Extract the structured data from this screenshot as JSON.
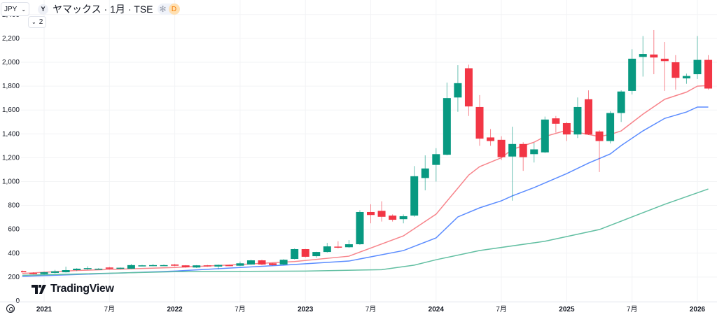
{
  "header": {
    "currency": "JPY",
    "logo_letter": "Y",
    "title": "ヤマックス · 1月 · TSE",
    "asterisk": "✻",
    "status_badge": "D",
    "collapse_count": "2"
  },
  "branding": {
    "name": "TradingView"
  },
  "colors": {
    "up": "#089981",
    "down": "#F23645",
    "ma_fast": "#F7858C",
    "ma_mid": "#5B8CFF",
    "ma_slow": "#62BFA2",
    "grid": "#F2F3F5"
  },
  "chart_data": {
    "type": "candlestick",
    "title": "ヤマックス · 1月 · TSE",
    "interval": "1M",
    "ylabel": "JPY",
    "ylim": [
      0,
      2450
    ],
    "yticks": [
      0,
      200,
      400,
      600,
      800,
      1000,
      1200,
      1400,
      1600,
      1800,
      2000,
      2200,
      2400
    ],
    "ytick_labels": [
      "0",
      "200",
      "400",
      "600",
      "800",
      "1,000",
      "1,200",
      "1,400",
      "1,600",
      "1,800",
      "2,000",
      "2,200",
      "2,400"
    ],
    "xticks": [
      {
        "index": 2,
        "label": "2021",
        "year": true
      },
      {
        "index": 8,
        "label": "7月",
        "year": false
      },
      {
        "index": 14,
        "label": "2022",
        "year": true
      },
      {
        "index": 20,
        "label": "7月",
        "year": false
      },
      {
        "index": 26,
        "label": "2023",
        "year": true
      },
      {
        "index": 32,
        "label": "7月",
        "year": false
      },
      {
        "index": 38,
        "label": "2024",
        "year": true
      },
      {
        "index": 44,
        "label": "7月",
        "year": false
      },
      {
        "index": 50,
        "label": "2025",
        "year": true
      },
      {
        "index": 56,
        "label": "7月",
        "year": false
      },
      {
        "index": 62,
        "label": "2026",
        "year": true
      }
    ],
    "start_month": "2020-11",
    "ohlc": [
      [
        250,
        255,
        238,
        240
      ],
      [
        235,
        240,
        222,
        225
      ],
      [
        225,
        245,
        220,
        240
      ],
      [
        235,
        260,
        230,
        248
      ],
      [
        240,
        287,
        238,
        258
      ],
      [
        258,
        275,
        250,
        270
      ],
      [
        275,
        290,
        260,
        275
      ],
      [
        270,
        275,
        265,
        270
      ],
      [
        280,
        285,
        265,
        270
      ],
      [
        270,
        280,
        265,
        278
      ],
      [
        270,
        310,
        268,
        300
      ],
      [
        298,
        302,
        294,
        298
      ],
      [
        300,
        310,
        290,
        300
      ],
      [
        300,
        305,
        295,
        300
      ],
      [
        305,
        310,
        290,
        295
      ],
      [
        298,
        300,
        278,
        282
      ],
      [
        280,
        300,
        276,
        298
      ],
      [
        298,
        302,
        286,
        290
      ],
      [
        288,
        305,
        265,
        302
      ],
      [
        300,
        302,
        292,
        296
      ],
      [
        295,
        330,
        292,
        315
      ],
      [
        305,
        345,
        302,
        340
      ],
      [
        340,
        345,
        300,
        305
      ],
      [
        315,
        318,
        296,
        300
      ],
      [
        305,
        350,
        300,
        345
      ],
      [
        352,
        440,
        348,
        434
      ],
      [
        434,
        436,
        365,
        370
      ],
      [
        375,
        412,
        362,
        410
      ],
      [
        410,
        486,
        405,
        457
      ],
      [
        455,
        500,
        440,
        450
      ],
      [
        450,
        510,
        445,
        475
      ],
      [
        475,
        760,
        470,
        745
      ],
      [
        745,
        810,
        650,
        720
      ],
      [
        755,
        835,
        665,
        705
      ],
      [
        715,
        725,
        665,
        680
      ],
      [
        685,
        725,
        650,
        710
      ],
      [
        715,
        1130,
        705,
        1045
      ],
      [
        1030,
        1220,
        927,
        1110
      ],
      [
        1140,
        1280,
        1000,
        1230
      ],
      [
        1225,
        1830,
        1220,
        1700
      ],
      [
        1705,
        1976,
        1585,
        1825
      ],
      [
        1950,
        1980,
        1550,
        1630
      ],
      [
        1625,
        1725,
        1300,
        1360
      ],
      [
        1370,
        1440,
        1300,
        1340
      ],
      [
        1350,
        1380,
        1180,
        1205
      ],
      [
        1210,
        1460,
        840,
        1315
      ],
      [
        1315,
        1330,
        1090,
        1205
      ],
      [
        1230,
        1325,
        1160,
        1270
      ],
      [
        1245,
        1545,
        1240,
        1520
      ],
      [
        1530,
        1550,
        1410,
        1485
      ],
      [
        1490,
        1500,
        1340,
        1395
      ],
      [
        1395,
        1705,
        1365,
        1625
      ],
      [
        1690,
        1765,
        1390,
        1395
      ],
      [
        1420,
        1430,
        1080,
        1340
      ],
      [
        1340,
        1590,
        1320,
        1575
      ],
      [
        1575,
        1765,
        1500,
        1755
      ],
      [
        1760,
        2110,
        1730,
        2030
      ],
      [
        2045,
        2220,
        1880,
        2070
      ],
      [
        2065,
        2270,
        1900,
        2040
      ],
      [
        2030,
        2170,
        1760,
        2010
      ],
      [
        2000,
        2060,
        1770,
        1870
      ],
      [
        1865,
        1905,
        1820,
        1885
      ],
      [
        1900,
        2220,
        1860,
        2020
      ],
      [
        2020,
        2060,
        1770,
        1780
      ]
    ],
    "moving_averages": [
      {
        "name": "MA fast",
        "points": [
          [
            0,
            230
          ],
          [
            5,
            255
          ],
          [
            14,
            280
          ],
          [
            20,
            305
          ],
          [
            25,
            330
          ],
          [
            30,
            375
          ],
          [
            35,
            545
          ],
          [
            38,
            727
          ],
          [
            40,
            945
          ],
          [
            41,
            1055
          ],
          [
            42,
            1125
          ],
          [
            44,
            1200
          ],
          [
            45,
            1270
          ],
          [
            47,
            1330
          ],
          [
            48,
            1378
          ],
          [
            50,
            1430
          ],
          [
            52,
            1395
          ],
          [
            53,
            1378
          ],
          [
            54,
            1395
          ],
          [
            55,
            1425
          ],
          [
            57,
            1565
          ],
          [
            59,
            1690
          ],
          [
            61,
            1750
          ],
          [
            62,
            1800
          ],
          [
            63,
            1805
          ]
        ]
      },
      {
        "name": "MA mid",
        "points": [
          [
            0,
            205
          ],
          [
            14,
            250
          ],
          [
            24,
            300
          ],
          [
            30,
            334
          ],
          [
            35,
            422
          ],
          [
            38,
            528
          ],
          [
            40,
            704
          ],
          [
            42,
            780
          ],
          [
            44,
            839
          ],
          [
            45,
            880
          ],
          [
            47,
            950
          ],
          [
            50,
            1067
          ],
          [
            52,
            1155
          ],
          [
            54,
            1232
          ],
          [
            55,
            1302
          ],
          [
            57,
            1425
          ],
          [
            59,
            1530
          ],
          [
            61,
            1583
          ],
          [
            62,
            1625
          ],
          [
            63,
            1625
          ]
        ]
      },
      {
        "name": "MA slow",
        "points": [
          [
            0,
            215
          ],
          [
            14,
            245
          ],
          [
            26,
            250
          ],
          [
            33,
            262
          ],
          [
            36,
            300
          ],
          [
            38,
            345
          ],
          [
            42,
            422
          ],
          [
            48,
            500
          ],
          [
            53,
            598
          ],
          [
            56,
            704
          ],
          [
            59,
            810
          ],
          [
            63,
            938
          ]
        ]
      }
    ],
    "grid": true
  }
}
